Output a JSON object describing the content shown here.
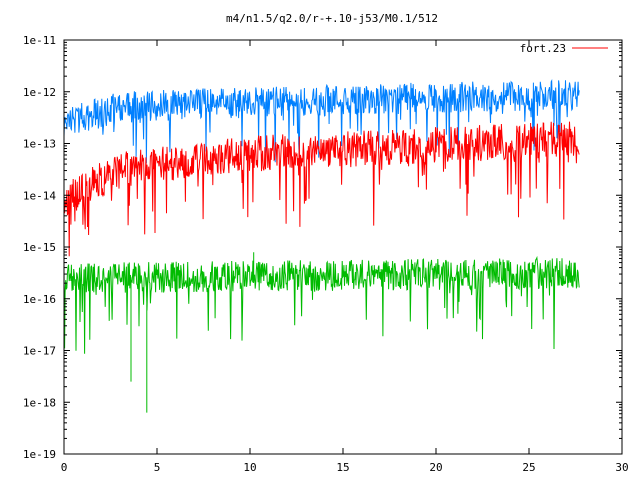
{
  "chart_data": {
    "type": "line",
    "title": "m4/n1.5/q2.0/r-+.10-j53/M0.1/512",
    "xlabel": "",
    "ylabel": "",
    "x_scale": "linear",
    "y_scale": "log",
    "xlim": [
      0,
      30
    ],
    "ylim": [
      1e-19,
      1e-11
    ],
    "x_ticks": [
      "0",
      "5",
      "10",
      "15",
      "20",
      "25",
      "30"
    ],
    "y_ticks": [
      "1e-19",
      "1e-18",
      "1e-17",
      "1e-16",
      "1e-15",
      "1e-14",
      "1e-13",
      "1e-12",
      "1e-11"
    ],
    "grid": false,
    "legend": {
      "position": "top-right",
      "entries": [
        "fort.23"
      ]
    },
    "x_end": 27.7,
    "series": [
      {
        "name": "fort.23",
        "color": "#ff0000",
        "baseline_log10": [
          [
            0,
            -14.1
          ],
          [
            3,
            -13.5
          ],
          [
            10,
            -13.2
          ],
          [
            27.7,
            -12.9
          ]
        ],
        "spread": 0.35,
        "dip_depth": 1.3,
        "dip_rate": 0.1
      },
      {
        "name": "",
        "color": "#0080ff",
        "baseline_log10": [
          [
            0,
            -12.6
          ],
          [
            3,
            -12.3
          ],
          [
            10,
            -12.2
          ],
          [
            27.7,
            -12.05
          ]
        ],
        "spread": 0.3,
        "dip_depth": 1.0,
        "dip_rate": 0.08
      },
      {
        "name": "",
        "color": "#00bb00",
        "baseline_log10": [
          [
            0,
            -15.6
          ],
          [
            27.7,
            -15.5
          ]
        ],
        "spread": 0.3,
        "dip_depth": 1.3,
        "dip_rate": 0.07
      }
    ],
    "min_dips": [
      [
        4.45,
        -18.2
      ],
      [
        3.6,
        -17.6
      ],
      [
        5.8,
        -15.3
      ],
      [
        10.2,
        -15.1
      ]
    ]
  }
}
